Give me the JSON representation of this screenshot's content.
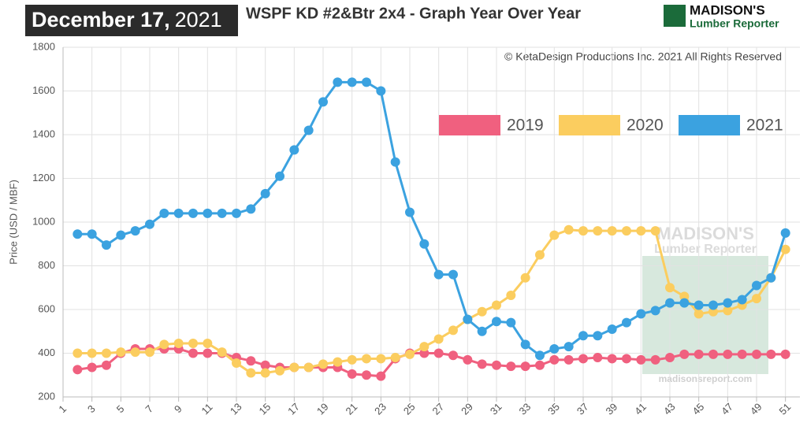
{
  "header": {
    "date_bold": "December 17,",
    "date_year": "2021",
    "logo_top": "MADISON'S",
    "logo_bottom": "Lumber Reporter"
  },
  "chart_data": {
    "type": "line",
    "title": "WSPF KD #2&Btr 2x4 - Graph Year Over Year",
    "copyright": "© KetaDesign Productions Inc. 2021 All Rights Reserved",
    "watermark": [
      "MADISON'S",
      "Lumber Reporter",
      "madisonsreport.com"
    ],
    "y_label": "Price (USD / MBF)",
    "x": [
      2,
      3,
      4,
      5,
      6,
      7,
      8,
      9,
      10,
      11,
      12,
      13,
      14,
      15,
      16,
      17,
      18,
      19,
      20,
      21,
      22,
      23,
      24,
      25,
      26,
      27,
      28,
      29,
      30,
      31,
      32,
      33,
      34,
      35,
      36,
      37,
      38,
      39,
      40,
      41,
      42,
      43,
      44,
      45,
      46,
      47,
      48,
      49,
      50,
      51
    ],
    "series": [
      {
        "name": "2019",
        "color": "#f0607f",
        "values": [
          325,
          335,
          345,
          400,
          420,
          420,
          420,
          420,
          400,
          400,
          400,
          380,
          365,
          345,
          335,
          335,
          335,
          335,
          335,
          305,
          300,
          295,
          375,
          400,
          400,
          400,
          390,
          370,
          350,
          345,
          340,
          340,
          345,
          370,
          370,
          375,
          380,
          375,
          375,
          370,
          370,
          380,
          395,
          395,
          395,
          395,
          395,
          395,
          395,
          395
        ]
      },
      {
        "name": "2020",
        "color": "#fbcd5f",
        "values": [
          400,
          400,
          400,
          405,
          405,
          405,
          440,
          445,
          445,
          445,
          405,
          355,
          310,
          310,
          320,
          335,
          335,
          350,
          360,
          370,
          375,
          375,
          380,
          395,
          430,
          465,
          505,
          555,
          590,
          620,
          665,
          745,
          850,
          940,
          965,
          960,
          960,
          960,
          960,
          960,
          960,
          700,
          660,
          580,
          590,
          595,
          620,
          650,
          745,
          875
        ]
      },
      {
        "name": "2021",
        "color": "#3ba2e0",
        "values": [
          945,
          945,
          895,
          940,
          960,
          990,
          1040,
          1040,
          1040,
          1040,
          1040,
          1040,
          1060,
          1130,
          1210,
          1330,
          1420,
          1550,
          1640,
          1640,
          1640,
          1600,
          1275,
          1045,
          900,
          760,
          760,
          555,
          500,
          545,
          540,
          440,
          390,
          420,
          430,
          480,
          480,
          510,
          540,
          580,
          595,
          630,
          630,
          620,
          620,
          630,
          645,
          710,
          745,
          950
        ]
      }
    ],
    "xlim": [
      1,
      52
    ],
    "xticks": [
      1,
      3,
      5,
      7,
      9,
      11,
      13,
      15,
      17,
      19,
      21,
      23,
      25,
      27,
      29,
      31,
      33,
      35,
      37,
      39,
      41,
      43,
      45,
      47,
      49,
      51
    ],
    "ylim": [
      200,
      1800
    ],
    "yticks": [
      200,
      400,
      600,
      800,
      1000,
      1200,
      1400,
      1600,
      1800
    ],
    "grid": true,
    "legend": "top-right"
  }
}
